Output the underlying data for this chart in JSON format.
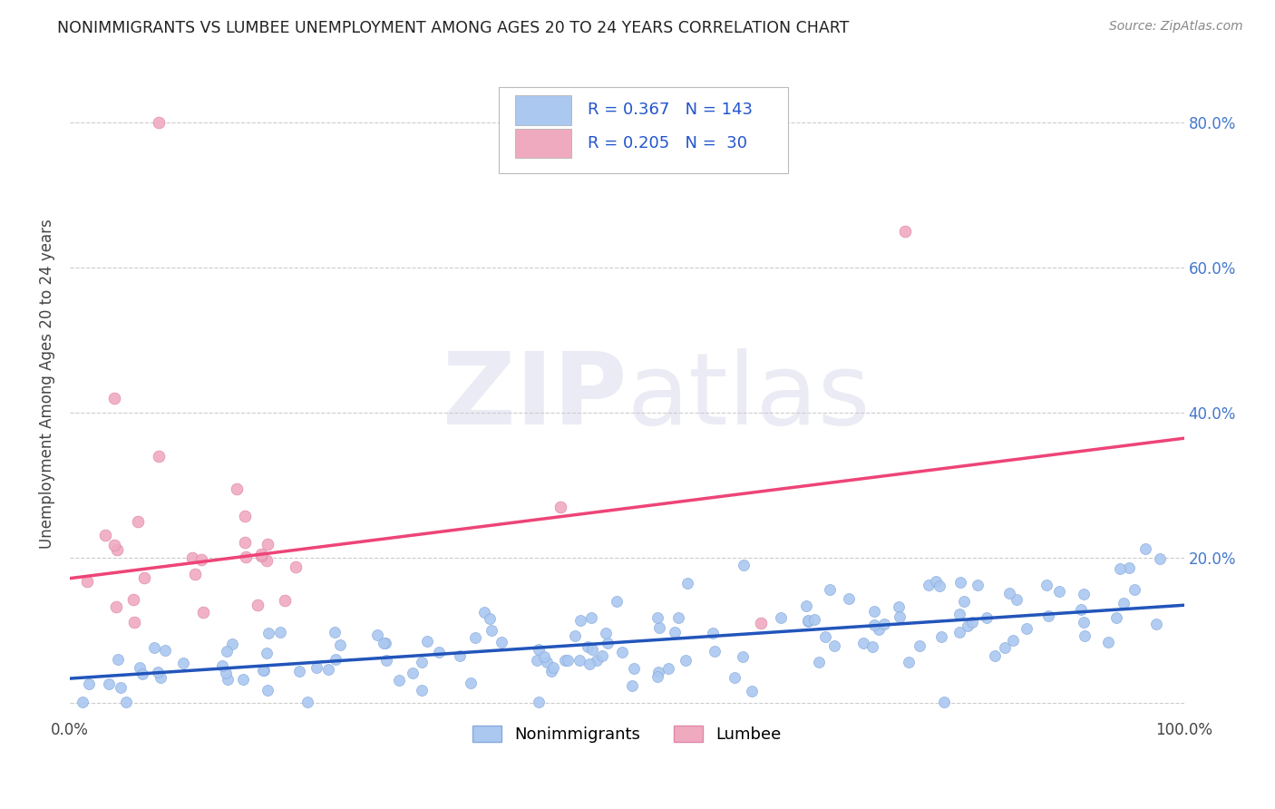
{
  "title": "NONIMMIGRANTS VS LUMBEE UNEMPLOYMENT AMONG AGES 20 TO 24 YEARS CORRELATION CHART",
  "source": "Source: ZipAtlas.com",
  "ylabel": "Unemployment Among Ages 20 to 24 years",
  "xlim": [
    0.0,
    1.0
  ],
  "ylim": [
    -0.02,
    0.9
  ],
  "ytick_vals": [
    0.0,
    0.2,
    0.4,
    0.6,
    0.8
  ],
  "background_color": "#ffffff",
  "grid_color": "#cccccc",
  "watermark_zip": "ZIP",
  "watermark_atlas": "atlas",
  "watermark_color": "#ebebf5",
  "nonimmigrants_color": "#aac8f0",
  "nonimmigrants_edge_color": "#88aadd",
  "lumbee_color": "#f0aac0",
  "lumbee_edge_color": "#dd88aa",
  "nonimmigrants_line_color": "#2255bb",
  "lumbee_line_color": "#ee4477",
  "R_nonimmigrants": 0.367,
  "N_nonimmigrants": 143,
  "R_lumbee": 0.205,
  "N_lumbee": 30,
  "non_line_x0": 0.0,
  "non_line_y0": 0.034,
  "non_line_x1": 1.0,
  "non_line_y1": 0.135,
  "lum_line_x0": 0.0,
  "lum_line_y0": 0.172,
  "lum_line_x1": 1.0,
  "lum_line_y1": 0.365
}
